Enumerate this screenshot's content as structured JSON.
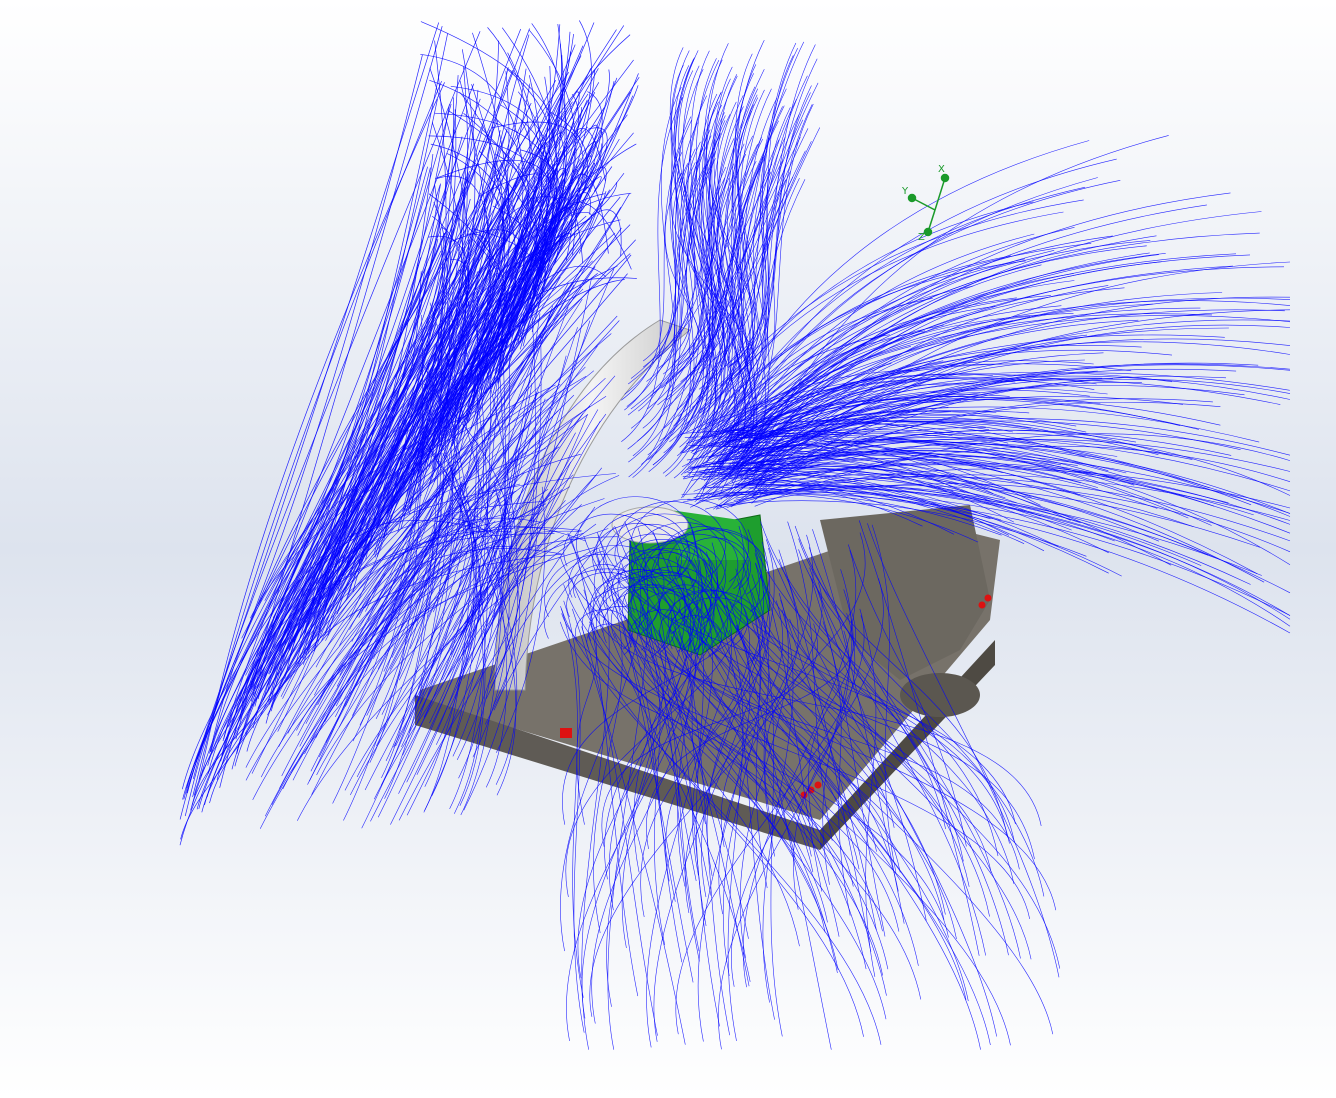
{
  "viewport": {
    "background_gradient": [
      "#ffffff",
      "#dde3ee",
      "#ffffff"
    ],
    "flow_trajectory_color": "#0000ff",
    "model_colors": {
      "base": "#6e6a62",
      "base_dark": "#4e4a43",
      "arc_frame": "#e6e6e6",
      "pcb": "#1e9e2e",
      "connector": "#dd1111"
    }
  },
  "triad": {
    "axis_labels": [
      "X",
      "Y",
      "Z"
    ],
    "color": "#1a9a2a"
  }
}
